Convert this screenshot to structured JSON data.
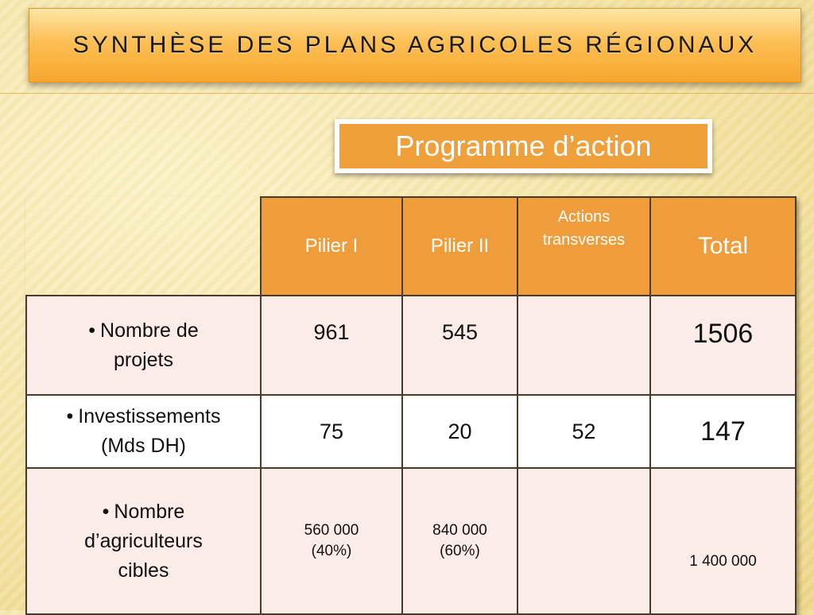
{
  "title": "SYNTHÈSE DES PLANS AGRICOLES RÉGIONAUX",
  "subtitle": "Programme d’action",
  "table": {
    "headers": {
      "pilier1": "Pilier I",
      "pilier2": "Pilier II",
      "actions_line1": "Actions",
      "actions_line2": "transverses",
      "total": "Total"
    },
    "rows": [
      {
        "label_line1": "Nombre de",
        "label_line2": "projets",
        "pilier1": "961",
        "pilier2": "545",
        "actions": "",
        "total": "1506"
      },
      {
        "label_line1": "Investissements",
        "label_line2": "(Mds DH)",
        "pilier1": "75",
        "pilier2": "20",
        "actions": "52",
        "total": "147"
      },
      {
        "label_line1": "Nombre",
        "label_line2": "d’agriculteurs",
        "label_line3": "cibles",
        "pilier1_line1": "560 000",
        "pilier1_line2": "(40%)",
        "pilier2_line1": "840 000",
        "pilier2_line2": "(60%)",
        "actions": "",
        "total": "1 400 000"
      }
    ]
  }
}
